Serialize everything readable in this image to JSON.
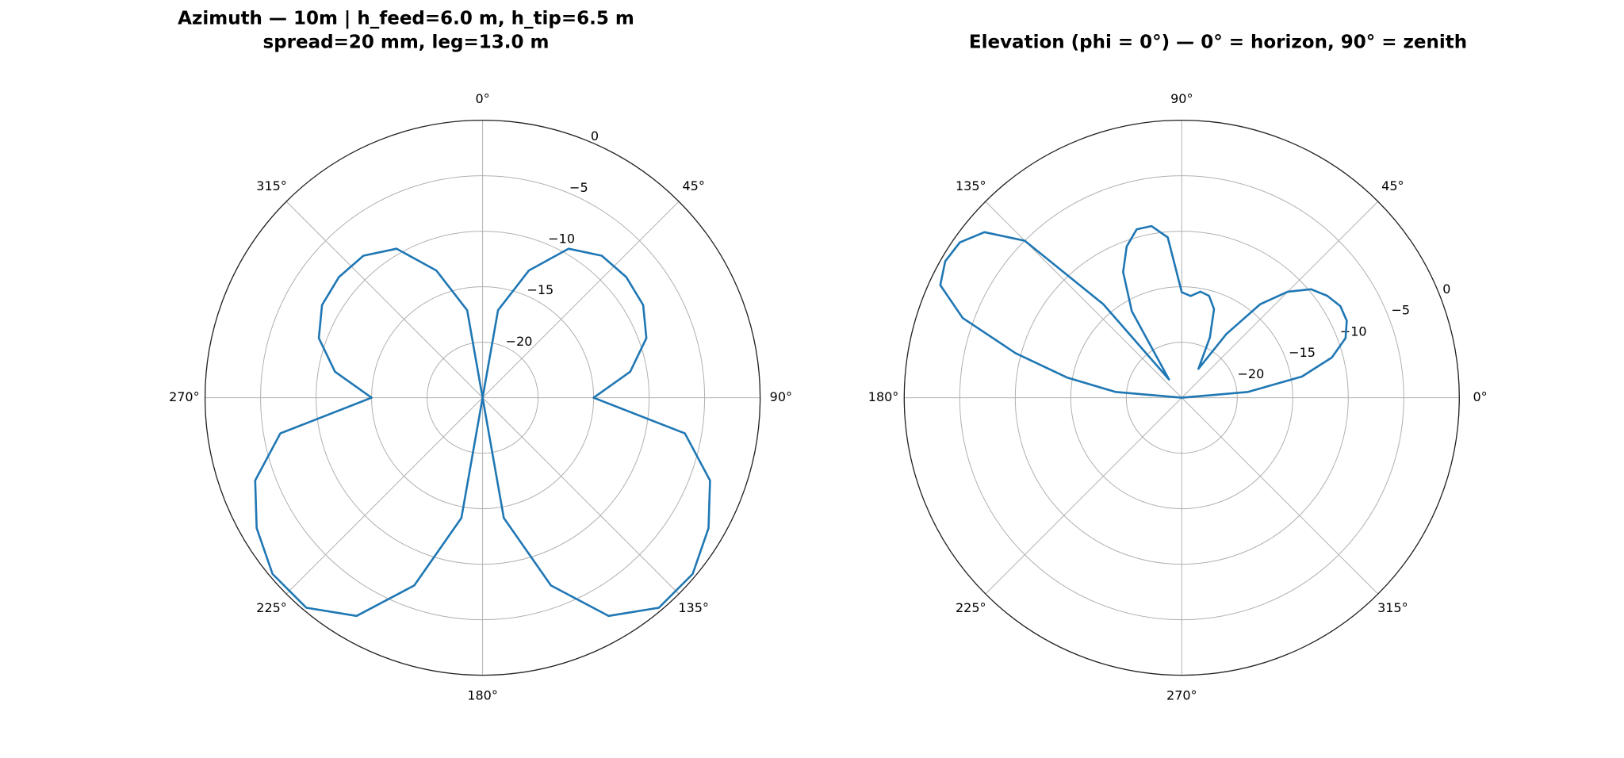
{
  "chart_data": [
    {
      "type": "polar",
      "title": [
        "Azimuth — 10m  |  h_feed=6.0 m, h_tip=6.5 m",
        "spread=20 mm, leg=13.0 m"
      ],
      "theta_zero": "N",
      "theta_direction": "clockwise",
      "grid": true,
      "color": "#1f77b4",
      "rlim": [
        -25,
        0
      ],
      "rticks": [
        {
          "value": -20,
          "label": "−20"
        },
        {
          "value": -15,
          "label": "−15"
        },
        {
          "value": -10,
          "label": "−10"
        },
        {
          "value": -5,
          "label": "−5"
        },
        0
      ],
      "thetaticks": [
        {
          "value": 0,
          "label": "0°"
        },
        {
          "value": 45,
          "label": "45°"
        },
        {
          "value": 90,
          "label": "90°"
        },
        {
          "value": 135,
          "label": "135°"
        },
        {
          "value": 180,
          "label": "180°"
        },
        {
          "value": 225,
          "label": "225°"
        },
        {
          "value": 270,
          "label": "270°"
        },
        {
          "value": 315,
          "label": "315°"
        }
      ],
      "theta": [
        0,
        10,
        20,
        30,
        40,
        50,
        60,
        70,
        80,
        90,
        100,
        110,
        120,
        130,
        140,
        150,
        160,
        170,
        180,
        190,
        200,
        210,
        220,
        230,
        240,
        250,
        260,
        270,
        280,
        290,
        300,
        310,
        320,
        330,
        340,
        350,
        360
      ],
      "values": [
        -25,
        -17,
        -12.8,
        -9.5,
        -8.3,
        -8.1,
        -8.3,
        -9.3,
        -11.5,
        -15,
        -6.5,
        -3.2,
        -1.5,
        -0.3,
        -0.3,
        -2.3,
        -7,
        -14,
        -25,
        -14,
        -7,
        -2.3,
        -0.3,
        -0.3,
        -1.5,
        -3.2,
        -6.5,
        -15,
        -11.5,
        -9.3,
        -8.3,
        -8.1,
        -8.3,
        -9.5,
        -12.8,
        -17,
        -25
      ]
    },
    {
      "type": "polar",
      "title": [
        "Elevation (phi = 0°) — 0° = horizon, 90° = zenith"
      ],
      "theta_zero": "E",
      "theta_direction": "counterclockwise",
      "grid": true,
      "color": "#1f77b4",
      "rlim": [
        -25,
        0
      ],
      "rticks": [
        {
          "value": -20,
          "label": "−20"
        },
        {
          "value": -15,
          "label": "−15"
        },
        {
          "value": -10,
          "label": "−10"
        },
        {
          "value": -5,
          "label": "−5"
        },
        0
      ],
      "thetaticks": [
        {
          "value": 0,
          "label": "0°"
        },
        {
          "value": 45,
          "label": "45°"
        },
        {
          "value": 90,
          "label": "90°"
        },
        {
          "value": 135,
          "label": "135°"
        },
        {
          "value": 180,
          "label": "180°"
        },
        {
          "value": 225,
          "label": "225°"
        },
        {
          "value": 270,
          "label": "270°"
        },
        {
          "value": 315,
          "label": "315°"
        }
      ],
      "theta": [
        0,
        5,
        10,
        15,
        20,
        25,
        30,
        35,
        40,
        45,
        50,
        55,
        60,
        65,
        70,
        75,
        80,
        85,
        90,
        95,
        100,
        105,
        110,
        115,
        120,
        125,
        130,
        135,
        140,
        145,
        150,
        155,
        160,
        165,
        170,
        175,
        180
      ],
      "values": [
        -25,
        -19,
        -14,
        -11,
        -9.3,
        -8.6,
        -8.5,
        -9,
        -9.8,
        -11.5,
        -14,
        -18,
        -22,
        -19,
        -16.5,
        -15.5,
        -15.3,
        -15.8,
        -15.5,
        -10.5,
        -9.3,
        -9.3,
        -10.5,
        -12.5,
        -16,
        -23,
        -14,
        -5,
        -1.8,
        -0.6,
        -0.4,
        -1,
        -4,
        -9.5,
        -14.5,
        -19,
        -25
      ]
    }
  ]
}
